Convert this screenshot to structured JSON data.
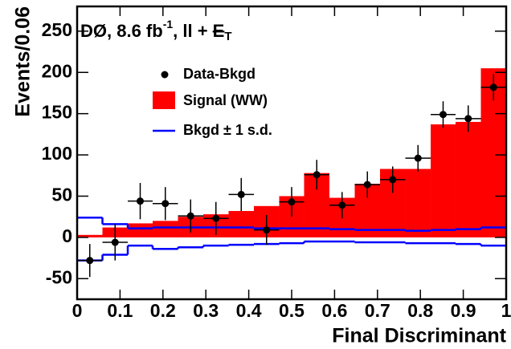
{
  "chart_data": {
    "type": "histogram",
    "title": {
      "text": "DØ, 8.6 fb",
      "sup": "-1",
      "rest": ", ll + ",
      "met": "E",
      "sub": "T"
    },
    "x_label": "Final Discriminant",
    "y_label": "Events/0.06",
    "bins": [
      0,
      0.059,
      0.118,
      0.176,
      0.235,
      0.294,
      0.353,
      0.412,
      0.471,
      0.529,
      0.588,
      0.647,
      0.706,
      0.765,
      0.824,
      0.882,
      0.941,
      1
    ],
    "series": [
      {
        "name": "Data-Bkgd",
        "color": "#000000",
        "values": [
          -28,
          -6,
          44,
          41,
          26,
          23,
          52,
          9,
          43,
          76,
          39,
          64,
          70,
          96,
          149,
          144,
          182
        ],
        "errors": [
          20,
          22,
          22,
          20,
          20,
          20,
          20,
          18,
          18,
          18,
          16,
          16,
          16,
          16,
          16,
          16,
          16
        ]
      },
      {
        "name": "Signal (WW)",
        "color": "#ff0000",
        "values": [
          3,
          12,
          17,
          20,
          25,
          28,
          32,
          38,
          50,
          78,
          48,
          65,
          83,
          83,
          137,
          140,
          205
        ]
      },
      {
        "name": "Bkgd ± 1 s.d.",
        "color": "#0000ff",
        "upper": [
          24,
          16,
          11,
          12,
          12,
          12,
          12,
          11,
          11,
          11,
          10,
          9,
          9,
          8,
          9,
          10,
          12
        ],
        "lower": [
          -28,
          -21,
          -10,
          -14,
          -12,
          -10,
          -9,
          -8,
          -7,
          -5,
          -5,
          -6,
          -6,
          -7,
          -7,
          -8,
          -10
        ]
      }
    ],
    "xlim": [
      0,
      1
    ],
    "xticks": [
      0,
      0.1,
      0.2,
      0.3,
      0.4,
      0.5,
      0.6,
      0.7,
      0.8,
      0.9,
      1
    ],
    "ylim": [
      -75,
      280
    ],
    "yticks": [
      -50,
      0,
      50,
      100,
      150,
      200,
      250
    ]
  }
}
